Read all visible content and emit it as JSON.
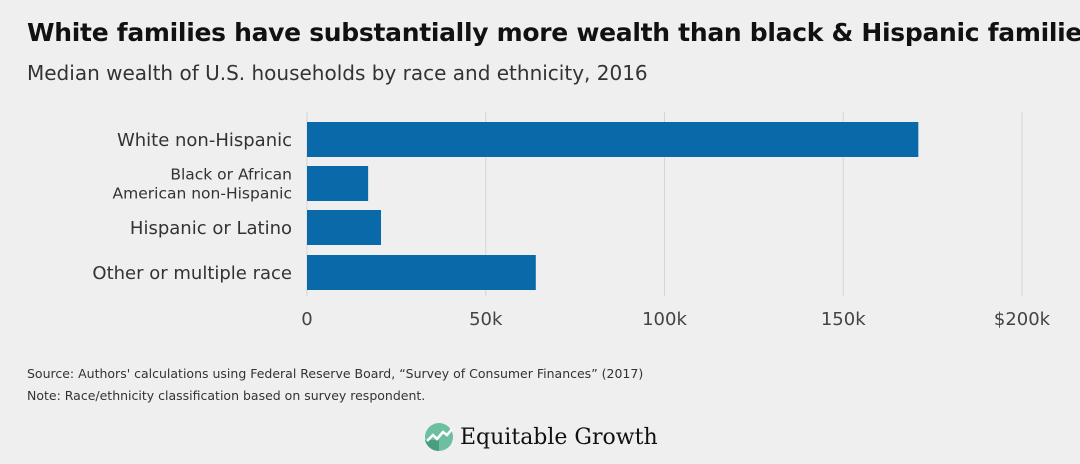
{
  "chart_data": {
    "type": "bar",
    "orientation": "horizontal",
    "title": "White families have substantially more wealth than black & Hispanic families",
    "subtitle": "Median wealth of U.S. households by race and ethnicity, 2016",
    "categories": [
      "White non-Hispanic",
      "Black or African American non-Hispanic",
      "Hispanic or Latino",
      "Other or multiple race"
    ],
    "category_lines": [
      [
        "White non-Hispanic"
      ],
      [
        "Black or African",
        "American non-Hispanic"
      ],
      [
        "Hispanic or Latino"
      ],
      [
        "Other or multiple race"
      ]
    ],
    "values": [
      171000,
      17100,
      20700,
      64000
    ],
    "xlim": [
      0,
      200000
    ],
    "xticks": [
      0,
      50000,
      100000,
      150000,
      200000
    ],
    "xtick_labels": [
      "0",
      "50k",
      "100k",
      "150k",
      "$200k"
    ],
    "xlabel": "",
    "ylabel": "",
    "grid": true,
    "bar_color": "#0a69a9"
  },
  "footer": {
    "source": "Source: Authors' calculations using Federal Reserve Board, “Survey of Consumer Finances” (2017)",
    "note": "Note: Race/ethnicity classification based on survey respondent."
  },
  "logo": {
    "text": "Equitable Growth"
  }
}
